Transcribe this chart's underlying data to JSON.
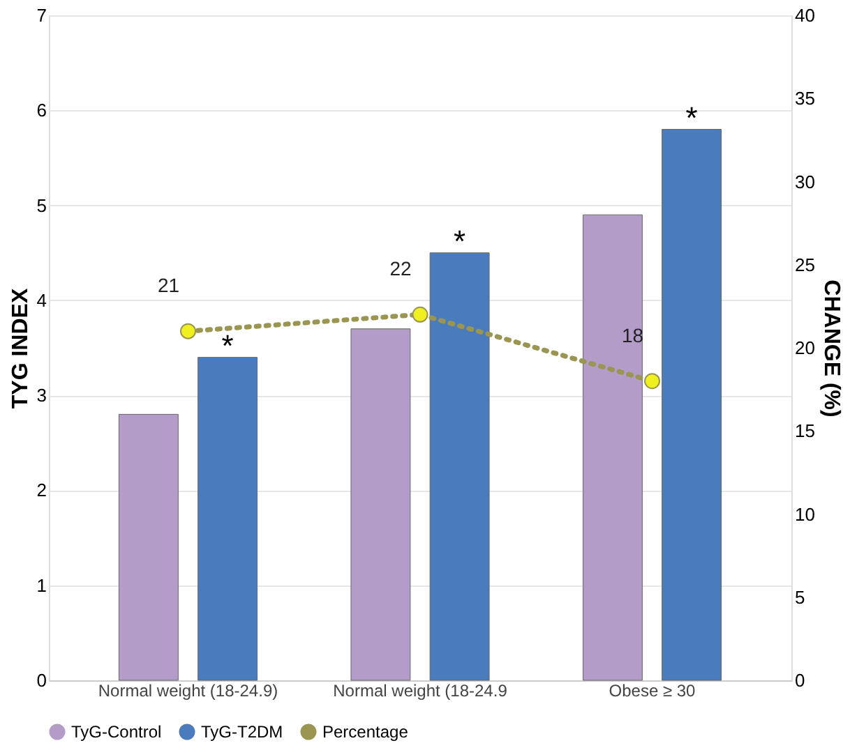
{
  "chart_data": {
    "type": "bar",
    "categories": [
      "Normal weight (18-24.9)",
      "Normal weight (18-24.9",
      "Obese ≥ 30"
    ],
    "ylabel": "TYG INDEX",
    "y2label": "CHANGE (%)",
    "series": [
      {
        "name": "TyG-Control",
        "color": "#b49cc8",
        "values": [
          2.8,
          3.7,
          4.9
        ]
      },
      {
        "name": "TyG-T2DM",
        "color": "#4a7bbd",
        "values": [
          3.4,
          4.5,
          5.8
        ]
      },
      {
        "name": "Percentage",
        "type": "line",
        "axis": "y2",
        "color": "#9a9550",
        "values": [
          21,
          22,
          18
        ],
        "value_labels": [
          "21",
          "22",
          "18"
        ],
        "marker": "circle",
        "line_style": "dotted"
      }
    ],
    "ylim": [
      0,
      7
    ],
    "yticks": [
      0,
      1,
      2,
      3,
      4,
      5,
      6,
      7
    ],
    "y2lim": [
      0,
      40
    ],
    "y2ticks": [
      0,
      5,
      10,
      15,
      20,
      25,
      30,
      35,
      40
    ],
    "annotations": [
      "*",
      "*",
      "*"
    ],
    "grid": "y",
    "legend": "bottom"
  }
}
